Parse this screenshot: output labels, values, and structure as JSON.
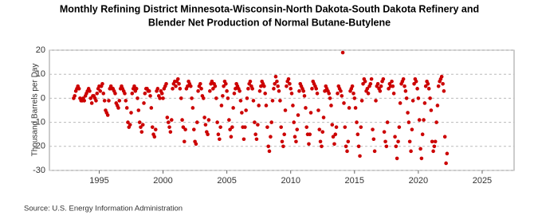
{
  "chart_data": {
    "type": "scatter",
    "title": [
      "Monthly Refining District Minnesota-Wisconsin-North Dakota-South Dakota Refinery and",
      "Blender Net Production of Normal Butane-Butylene"
    ],
    "y_label": "Thousand Barrels per Day",
    "source": "Source: U.S. Energy Information Administration",
    "xlim": [
      1991.1,
      2027.5
    ],
    "xticks": [
      1995,
      2000,
      2005,
      2010,
      2015,
      2020,
      2025
    ],
    "ylim": [
      -30,
      20
    ],
    "yticks": [
      -30,
      -20,
      -10,
      0,
      10,
      20
    ],
    "grid": true,
    "series": [
      {
        "name": "Net Production",
        "color": "#cc0000",
        "x": [
          1993,
          1993.08,
          1993.17,
          1993.25,
          1993.33,
          1993.42,
          1993.5,
          1993.58,
          1993.67,
          1993.75,
          1993.83,
          1993.92,
          1994,
          1994.08,
          1994.17,
          1994.25,
          1994.33,
          1994.42,
          1994.5,
          1994.58,
          1994.67,
          1994.75,
          1994.83,
          1994.92,
          1995,
          1995.08,
          1995.17,
          1995.25,
          1995.33,
          1995.42,
          1995.5,
          1995.58,
          1995.67,
          1995.75,
          1995.83,
          1995.92,
          1996,
          1996.08,
          1996.17,
          1996.25,
          1996.33,
          1996.42,
          1996.5,
          1996.58,
          1996.67,
          1996.75,
          1996.83,
          1996.92,
          1997,
          1997.08,
          1997.17,
          1997.25,
          1997.33,
          1997.42,
          1997.5,
          1997.58,
          1997.67,
          1997.75,
          1997.83,
          1997.92,
          1998,
          1998.08,
          1998.17,
          1998.25,
          1998.33,
          1998.42,
          1998.5,
          1998.58,
          1998.67,
          1998.75,
          1998.83,
          1998.92,
          1999,
          1999.08,
          1999.17,
          1999.25,
          1999.33,
          1999.42,
          1999.5,
          1999.58,
          1999.67,
          1999.75,
          1999.83,
          1999.92,
          2000,
          2000.08,
          2000.17,
          2000.25,
          2000.33,
          2000.42,
          2000.5,
          2000.58,
          2000.67,
          2000.75,
          2000.83,
          2000.92,
          2001,
          2001.08,
          2001.17,
          2001.25,
          2001.33,
          2001.42,
          2001.5,
          2001.58,
          2001.67,
          2001.75,
          2001.83,
          2001.92,
          2002,
          2002.08,
          2002.17,
          2002.25,
          2002.33,
          2002.42,
          2002.5,
          2002.58,
          2002.67,
          2002.75,
          2002.83,
          2002.92,
          2003,
          2003.08,
          2003.17,
          2003.25,
          2003.33,
          2003.42,
          2003.5,
          2003.58,
          2003.67,
          2003.75,
          2003.83,
          2003.92,
          2004,
          2004.08,
          2004.17,
          2004.25,
          2004.33,
          2004.42,
          2004.5,
          2004.58,
          2004.67,
          2004.75,
          2004.83,
          2004.92,
          2005,
          2005.08,
          2005.17,
          2005.25,
          2005.33,
          2005.42,
          2005.5,
          2005.58,
          2005.67,
          2005.75,
          2005.83,
          2005.92,
          2006,
          2006.08,
          2006.17,
          2006.25,
          2006.33,
          2006.42,
          2006.5,
          2006.58,
          2006.67,
          2006.75,
          2006.83,
          2006.92,
          2007,
          2007.08,
          2007.17,
          2007.25,
          2007.33,
          2007.42,
          2007.5,
          2007.58,
          2007.67,
          2007.75,
          2007.83,
          2007.92,
          2008,
          2008.08,
          2008.17,
          2008.25,
          2008.33,
          2008.42,
          2008.5,
          2008.58,
          2008.67,
          2008.75,
          2008.83,
          2008.92,
          2009,
          2009.08,
          2009.17,
          2009.25,
          2009.33,
          2009.42,
          2009.5,
          2009.58,
          2009.67,
          2009.75,
          2009.83,
          2009.92,
          2010,
          2010.08,
          2010.17,
          2010.25,
          2010.33,
          2010.42,
          2010.5,
          2010.58,
          2010.67,
          2010.75,
          2010.83,
          2010.92,
          2011,
          2011.08,
          2011.17,
          2011.25,
          2011.33,
          2011.42,
          2011.5,
          2011.58,
          2011.67,
          2011.75,
          2011.83,
          2011.92,
          2012,
          2012.08,
          2012.17,
          2012.25,
          2012.33,
          2012.42,
          2012.5,
          2012.58,
          2012.67,
          2012.75,
          2012.83,
          2012.92,
          2013,
          2013.08,
          2013.17,
          2013.25,
          2013.33,
          2013.42,
          2013.5,
          2013.58,
          2013.67,
          2013.75,
          2013.83,
          2013.92,
          2014,
          2014.08,
          2014.17,
          2014.25,
          2014.33,
          2014.42,
          2014.5,
          2014.58,
          2014.67,
          2014.75,
          2014.83,
          2014.92,
          2015,
          2015.08,
          2015.17,
          2015.25,
          2015.33,
          2015.42,
          2015.5,
          2015.58,
          2015.67,
          2015.75,
          2015.83,
          2015.92,
          2016,
          2016.08,
          2016.17,
          2016.25,
          2016.33,
          2016.42,
          2016.5,
          2016.58,
          2016.67,
          2016.75,
          2016.83,
          2016.92,
          2017,
          2017.08,
          2017.17,
          2017.25,
          2017.33,
          2017.42,
          2017.5,
          2017.58,
          2017.67,
          2017.75,
          2017.83,
          2017.92,
          2018,
          2018.08,
          2018.17,
          2018.25,
          2018.33,
          2018.42,
          2018.5,
          2018.58,
          2018.67,
          2018.75,
          2018.83,
          2018.92,
          2019,
          2019.08,
          2019.17,
          2019.25,
          2019.33,
          2019.42,
          2019.5,
          2019.58,
          2019.67,
          2019.75,
          2019.83,
          2019.92,
          2020,
          2020.08,
          2020.17,
          2020.25,
          2020.33,
          2020.42,
          2020.5,
          2020.58,
          2020.67,
          2020.75,
          2020.83,
          2020.92,
          2021,
          2021.08,
          2021.17,
          2021.25,
          2021.33,
          2021.42,
          2021.5,
          2021.58,
          2021.67,
          2021.75,
          2021.83,
          2021.92,
          2022,
          2022.08,
          2022.17,
          2022.25
        ],
        "values": [
          0,
          1,
          3,
          4,
          5,
          4,
          0,
          -1,
          -1,
          0,
          -1,
          1,
          2,
          3,
          4,
          3,
          0,
          -2,
          1,
          1,
          0,
          -1,
          2,
          4,
          5,
          3,
          5,
          6,
          2,
          -1,
          -5,
          -6,
          -7,
          -1,
          4,
          5,
          4,
          4,
          3,
          2,
          -2,
          -3,
          -4,
          -1,
          4,
          5,
          4,
          3,
          2,
          -1,
          -4,
          -10,
          -12,
          -11,
          -6,
          2,
          4,
          5,
          3,
          4,
          0,
          -5,
          -10,
          -12,
          -14,
          -11,
          -2,
          2,
          4,
          4,
          3,
          3,
          1,
          -4,
          -12,
          -15,
          -16,
          -13,
          3,
          4,
          1,
          0,
          3,
          2,
          0,
          4,
          5,
          6,
          -8,
          -10,
          -12,
          -14,
          -9,
          4,
          6,
          7,
          5,
          7,
          8,
          6,
          4,
          0,
          -9,
          -12,
          -18,
          -13,
          4,
          5,
          7,
          6,
          5,
          0,
          -4,
          -13,
          -18,
          -19,
          -10,
          3,
          5,
          6,
          4,
          1,
          0,
          -8,
          -11,
          -14,
          -15,
          -9,
          3,
          6,
          7,
          4,
          6,
          5,
          0,
          -10,
          -15,
          -17,
          -12,
          -3,
          1,
          5,
          7,
          6,
          3,
          0,
          -9,
          -13,
          -16,
          -12,
          -4,
          2,
          4,
          6,
          5,
          4,
          3,
          -1,
          -6,
          -12,
          -17,
          -12,
          -5,
          0,
          4,
          6,
          7,
          5,
          4,
          -1,
          -10,
          -15,
          -17,
          -11,
          -3,
          3,
          5,
          7,
          6,
          5,
          2,
          -3,
          -12,
          -20,
          -22,
          -16,
          -10,
          -1,
          4,
          6,
          9,
          7,
          5,
          3,
          -1,
          -12,
          -18,
          -20,
          -15,
          -5,
          5,
          7,
          8,
          6,
          4,
          2,
          -3,
          -10,
          -16,
          -18,
          -13,
          -7,
          3,
          6,
          5,
          4,
          3,
          1,
          -4,
          -12,
          -15,
          -19,
          -15,
          -6,
          4,
          7,
          6,
          5,
          4,
          2,
          -5,
          -13,
          -18,
          -20,
          -14,
          -8,
          3,
          5,
          4,
          3,
          2,
          0,
          -3,
          -11,
          -16,
          -19,
          -15,
          -12,
          2,
          5,
          4,
          3,
          1,
          19,
          -2,
          -12,
          -20,
          -22,
          -18,
          -4,
          3,
          4,
          5,
          2,
          0,
          -4,
          -10,
          -15,
          -20,
          -24,
          -12,
          -1,
          6,
          8,
          7,
          3,
          4,
          2,
          5,
          6,
          8,
          -13,
          -17,
          -22,
          -1,
          5,
          6,
          4,
          3,
          5,
          7,
          8,
          -14,
          -18,
          -20,
          -10,
          4,
          6,
          5,
          7,
          5,
          2,
          -16,
          -20,
          -25,
          -18,
          -12,
          -2,
          6,
          7,
          8,
          5,
          3,
          0,
          -6,
          -10,
          -18,
          -22,
          -13,
          -1,
          6,
          8,
          7,
          4,
          0,
          -9,
          -21,
          -25,
          -15,
          -9,
          -2,
          5,
          7,
          6,
          4,
          0,
          -5,
          -18,
          -22,
          -20,
          -18,
          -10,
          -3,
          5,
          7,
          8,
          9,
          6,
          3,
          -16,
          -27,
          -23
        ]
      }
    ]
  }
}
